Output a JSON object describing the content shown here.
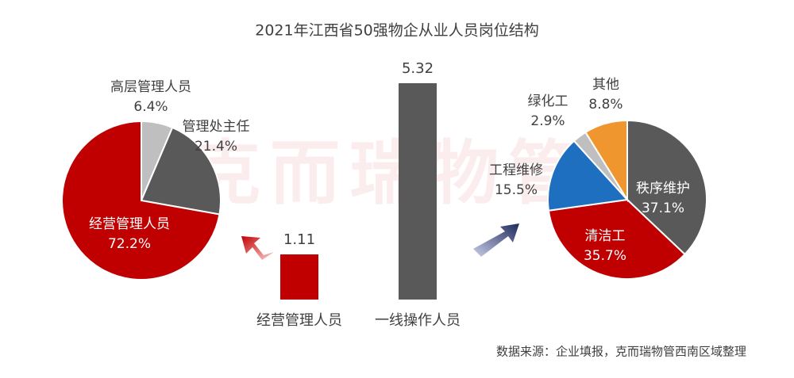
{
  "title": "2021年江西省50强物企从业人员岗位结构",
  "watermark": "克而瑞物管",
  "source": "数据来源：企业填报，克而瑞物管西南区域整理",
  "chart_data": [
    {
      "type": "pie",
      "categories": [
        "高层管理人员",
        "管理处主任",
        "经营管理人员"
      ],
      "values": [
        6.4,
        21.4,
        72.2
      ],
      "value_labels": [
        "6.4%",
        "21.4%",
        "72.2%"
      ],
      "colors": [
        "#bfbfbf",
        "#595959",
        "#c00000"
      ]
    },
    {
      "type": "bar",
      "categories": [
        "经营管理人员",
        "一线操作人员"
      ],
      "values": [
        1.11,
        5.32
      ],
      "colors": [
        "#c00000",
        "#595959"
      ]
    },
    {
      "type": "pie",
      "categories": [
        "秩序维护",
        "清洁工",
        "工程维修",
        "绿化工",
        "其他"
      ],
      "values": [
        37.1,
        35.7,
        15.5,
        2.9,
        8.8
      ],
      "value_labels": [
        "37.1%",
        "35.7%",
        "15.5%",
        "2.9%",
        "8.8%"
      ],
      "colors": [
        "#595959",
        "#c00000",
        "#1f6fc0",
        "#bfbfbf",
        "#f0962f"
      ]
    }
  ]
}
